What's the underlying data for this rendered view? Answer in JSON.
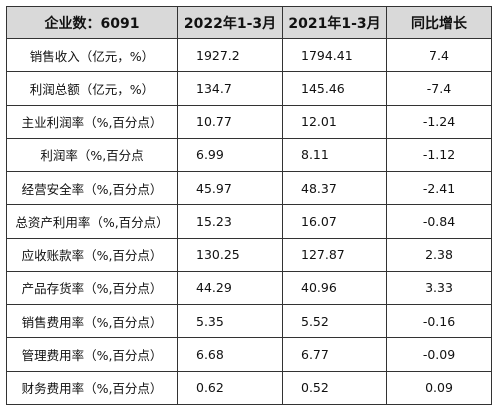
{
  "table": {
    "header": [
      "企业数：6091",
      "2022年1-3月",
      "2021年1-3月",
      "同比增长"
    ],
    "rows": [
      [
        "销售收入（亿元，%）",
        "1927.2",
        "1794.41",
        "7.4"
      ],
      [
        "利润总额（亿元，%）",
        "134.7",
        "145.46",
        "-7.4"
      ],
      [
        "主业利润率（%,百分点）",
        "10.77",
        "12.01",
        "-1.24"
      ],
      [
        "利润率（%,百分点",
        "6.99",
        "8.11",
        "-1.12"
      ],
      [
        "经营安全率（%,百分点）",
        "45.97",
        "48.37",
        "-2.41"
      ],
      [
        "总资产利用率（%,百分点）",
        "15.23",
        "16.07",
        "-0.84"
      ],
      [
        "应收账款率（%,百分点）",
        "130.25",
        "127.87",
        "2.38"
      ],
      [
        "产品存货率（%,百分点）",
        "44.29",
        "40.96",
        "3.33"
      ],
      [
        "销售费用率（%,百分点）",
        "5.35",
        "5.52",
        "-0.16"
      ],
      [
        "管理费用率（%,百分点）",
        "6.68",
        "6.77",
        "-0.09"
      ],
      [
        "财务费用率（%,百分点）",
        "0.62",
        "0.52",
        "0.09"
      ]
    ]
  }
}
